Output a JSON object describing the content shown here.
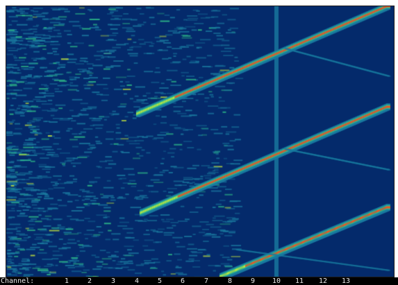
{
  "axis": {
    "label": "Channel:",
    "channels": [
      "1",
      "2",
      "3",
      "4",
      "5",
      "6",
      "7",
      "8",
      "9",
      "10",
      "11",
      "12",
      "13"
    ]
  },
  "colors": {
    "background": "#042a6b",
    "axis_bar": "#000000",
    "axis_text": "#e9e9e9",
    "signal_low": "#1a7aa0",
    "signal_mid": "#2fc28a",
    "signal_high": "#c8e83c",
    "signal_peak": "#ff4a1a"
  }
}
